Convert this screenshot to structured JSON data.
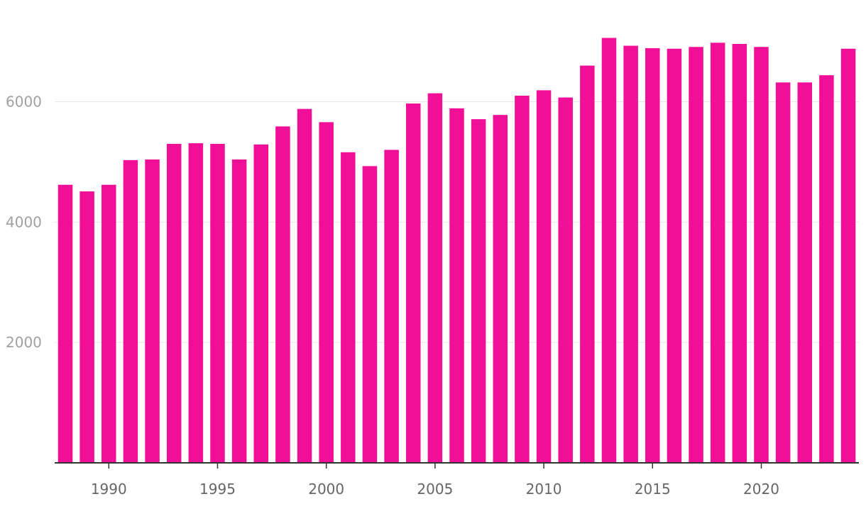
{
  "chart_data": {
    "type": "bar",
    "title": "",
    "xlabel": "",
    "ylabel": "",
    "x": [
      1988,
      1989,
      1990,
      1991,
      1992,
      1993,
      1994,
      1995,
      1996,
      1997,
      1998,
      1999,
      2000,
      2001,
      2002,
      2003,
      2004,
      2005,
      2006,
      2007,
      2008,
      2009,
      2010,
      2011,
      2012,
      2013,
      2014,
      2015,
      2016,
      2017,
      2018,
      2019,
      2020,
      2021,
      2022,
      2023,
      2024
    ],
    "values": [
      4620,
      4510,
      4620,
      5030,
      5040,
      5300,
      5310,
      5300,
      5040,
      5290,
      5590,
      5880,
      5660,
      5160,
      4930,
      5200,
      5970,
      6140,
      5890,
      5710,
      5780,
      6100,
      6190,
      6070,
      6600,
      7060,
      6930,
      6890,
      6880,
      6910,
      6980,
      6960,
      6910,
      6320,
      6320,
      6440,
      6880
    ],
    "ylim": [
      0,
      7200
    ],
    "yticks": [
      2000,
      4000,
      6000
    ],
    "xticks": [
      1990,
      1995,
      2000,
      2005,
      2010,
      2015,
      2020
    ],
    "grid": true,
    "bar_color": "#f20f98"
  }
}
